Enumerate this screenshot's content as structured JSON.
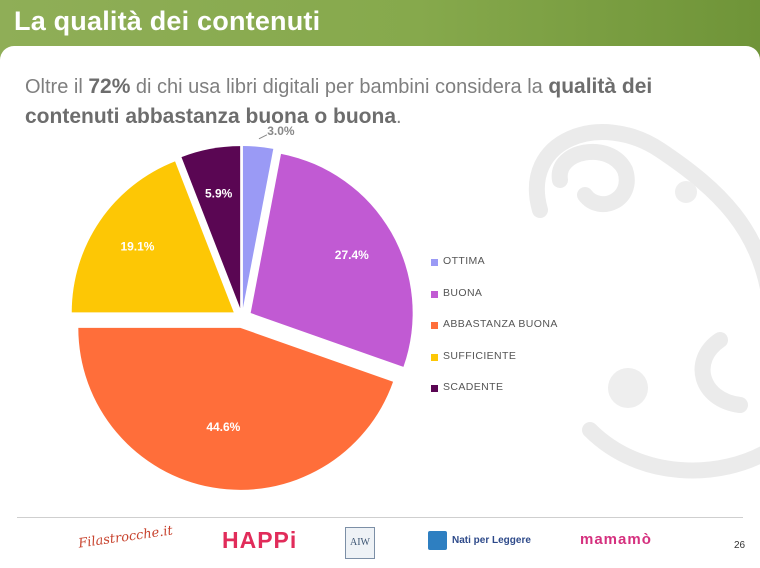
{
  "header": {
    "title": "La qualità dei contenuti"
  },
  "subtitle": {
    "part1": "Oltre il ",
    "highlight1": "72%",
    "part2": " di chi usa libri digitali per bambini considera la ",
    "highlight2": "qualità dei contenuti abbastanza buona o buona",
    "part3": "."
  },
  "chart_data": {
    "type": "pie",
    "title": "",
    "start_angle_deg": 0,
    "direction": "clockwise",
    "exploded": true,
    "legend_position": "right",
    "label_color": "#ffffff",
    "slices": [
      {
        "name": "OTTIMA",
        "value": 3.0,
        "label": "3.0%",
        "color": "#9a9af5",
        "label_color": "#888888"
      },
      {
        "name": "BUONA",
        "value": 27.4,
        "label": "27.4%",
        "color": "#c15ad3",
        "label_color": "#ffffff"
      },
      {
        "name": "ABBASTANZA BUONA",
        "value": 44.6,
        "label": "44.6%",
        "color": "#ff6e3a",
        "label_color": "#ffffff"
      },
      {
        "name": "SUFFICIENTE",
        "value": 19.1,
        "label": "19.1%",
        "color": "#fdc705",
        "label_color": "#ffffff"
      },
      {
        "name": "SCADENTE",
        "value": 5.9,
        "label": "5.9%",
        "color": "#5a0653",
        "label_color": "#ffffff"
      }
    ]
  },
  "footer": {
    "logos": [
      {
        "name": "Filastrocche.it",
        "icon": "filastrocche-logo"
      },
      {
        "name": "HAPPi",
        "icon": "happi-logo"
      },
      {
        "name": "AIW",
        "icon": "aiw-logo"
      },
      {
        "name": "Nati per Leggere",
        "icon": "nati-per-leggere-logo"
      },
      {
        "name": "mamamò",
        "icon": "mamamo-logo"
      }
    ],
    "page_number": "26"
  }
}
